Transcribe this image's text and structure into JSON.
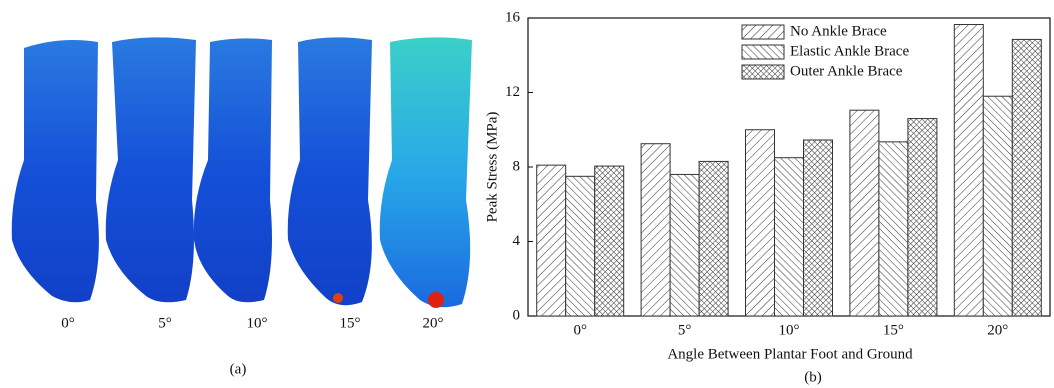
{
  "panel_a": {
    "labels": [
      "0°",
      "5°",
      "10°",
      "15°",
      "20°"
    ],
    "caption": "(a)"
  },
  "chart_data": {
    "type": "bar",
    "caption": "(b)",
    "x_label": "Angle Between Plantar Foot and Ground",
    "y_label": "Peak Stress (MPa)",
    "categories": [
      "0°",
      "5°",
      "10°",
      "15°",
      "20°"
    ],
    "series": [
      {
        "name": "No Ankle Brace",
        "color": "#333333",
        "values": [
          8.1,
          9.25,
          10.0,
          11.05,
          15.65
        ]
      },
      {
        "name": "Elastic Ankle Brace",
        "color": "#333333",
        "values": [
          7.5,
          7.6,
          8.5,
          9.35,
          11.8
        ]
      },
      {
        "name": "Outer Ankle Brace",
        "color": "#333333",
        "values": [
          8.05,
          8.3,
          9.45,
          10.6,
          14.85
        ]
      }
    ],
    "ylim": [
      0,
      16
    ],
    "yticks": [
      0,
      4,
      8,
      12,
      16
    ],
    "grid": false
  }
}
